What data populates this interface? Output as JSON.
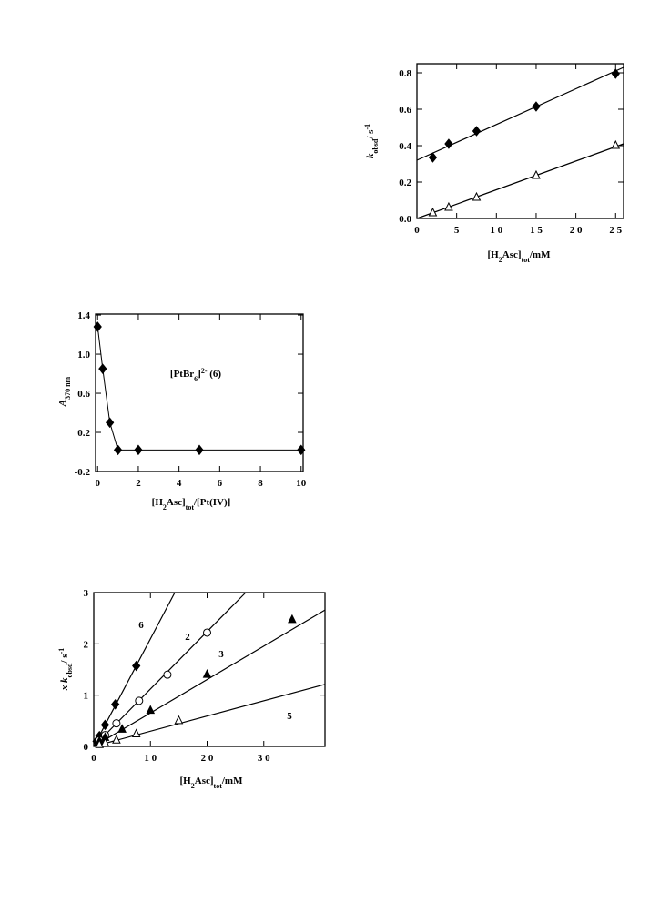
{
  "chart_data": [
    {
      "type": "scatter",
      "xlabel": [
        {
          "text": "[H"
        },
        {
          "text": "2",
          "sub": true
        },
        {
          "text": "Asc]"
        },
        {
          "text": "tot",
          "sub": true
        },
        {
          "text": "/mM"
        }
      ],
      "ylabel": [
        {
          "text": "k",
          "italic": true
        },
        {
          "text": "obsd",
          "sub": true
        },
        {
          "text": "/ s"
        },
        {
          "text": "-1",
          "sup": true
        }
      ],
      "xlim": [
        0,
        26
      ],
      "ylim": [
        0,
        0.85
      ],
      "xticks": [
        0,
        5,
        {
          "value": 10,
          "label": "1 0"
        },
        {
          "value": 15,
          "label": "1 5"
        },
        {
          "value": 20,
          "label": "2 0"
        },
        {
          "value": 25,
          "label": "2 5"
        }
      ],
      "yticks": [
        {
          "value": 0,
          "label": "0.0"
        },
        0.2,
        0.4,
        0.6,
        0.8
      ],
      "series": [
        {
          "marker": "diamond",
          "color": "#000000",
          "x": [
            2,
            4,
            7.5,
            15,
            25
          ],
          "values": [
            0.335,
            0.41,
            0.48,
            0.615,
            0.795
          ],
          "fit": {
            "x": [
              0,
              26
            ],
            "y": [
              0.32,
              0.83
            ]
          }
        },
        {
          "marker": "triangle-open",
          "color": "#000000",
          "x": [
            2,
            4,
            7.5,
            15,
            25
          ],
          "values": [
            0.03,
            0.06,
            0.115,
            0.235,
            0.4
          ],
          "fit": {
            "x": [
              0,
              26
            ],
            "y": [
              0,
              0.41
            ]
          }
        }
      ]
    },
    {
      "type": "scatter",
      "xlabel": [
        {
          "text": "[H"
        },
        {
          "text": "2",
          "sub": true
        },
        {
          "text": "Asc]"
        },
        {
          "text": "tot",
          "sub": true
        },
        {
          "text": "/[Pt(IV)]"
        }
      ],
      "ylabel": [
        {
          "text": "A",
          "italic": true
        },
        {
          "text": "370 nm",
          "sub": true
        }
      ],
      "annotation": [
        {
          "text": "[PtBr"
        },
        {
          "text": "6",
          "sub": true
        },
        {
          "text": "]"
        },
        {
          "text": "2-",
          "sup": true
        },
        {
          "text": " (6)"
        }
      ],
      "xlim": [
        -0.1,
        10.1
      ],
      "ylim": [
        -0.2,
        1.41
      ],
      "xticks": [
        0,
        2,
        4,
        6,
        8,
        10
      ],
      "yticks": [
        -0.2,
        0.2,
        0.6,
        {
          "value": 1,
          "label": "1.0"
        },
        1.4
      ],
      "series": [
        {
          "marker": "diamond",
          "color": "#000000",
          "line": true,
          "x": [
            0,
            0.25,
            0.6,
            1,
            2,
            5,
            10
          ],
          "values": [
            1.28,
            0.85,
            0.3,
            0.02,
            0.02,
            0.02,
            0.02
          ]
        }
      ]
    },
    {
      "type": "scatter",
      "xlabel": [
        {
          "text": "[H"
        },
        {
          "text": "2",
          "sub": true
        },
        {
          "text": "Asc]"
        },
        {
          "text": "tot",
          "sub": true
        },
        {
          "text": "/mM"
        }
      ],
      "ylabel": [
        {
          "text": "x ",
          "italic": true
        },
        {
          "text": "k",
          "italic": true
        },
        {
          "text": "obsd",
          "sub": true
        },
        {
          "text": "/ s"
        },
        {
          "text": "-1",
          "sup": true
        }
      ],
      "xlim": [
        0,
        40.8
      ],
      "ylim": [
        0,
        3
      ],
      "xticks": [
        0,
        {
          "value": 10,
          "label": "1 0"
        },
        {
          "value": 20,
          "label": "2 0"
        },
        {
          "value": 30,
          "label": "3 0"
        }
      ],
      "yticks": [
        0,
        1,
        2,
        3
      ],
      "series": [
        {
          "name": "6",
          "marker": "diamond",
          "color": "#000000",
          "x": [
            0.5,
            1,
            2,
            3.8,
            7.5
          ],
          "values": [
            0.1,
            0.2,
            0.42,
            0.82,
            1.57
          ],
          "fit": {
            "x": [
              0,
              14.3
            ],
            "y": [
              0,
              3
            ]
          }
        },
        {
          "name": "2",
          "marker": "circle-open",
          "color": "#000000",
          "x": [
            1,
            2,
            4,
            8,
            13,
            20
          ],
          "values": [
            0.12,
            0.22,
            0.45,
            0.89,
            1.4,
            2.22
          ],
          "fit": {
            "x": [
              0,
              26.8
            ],
            "y": [
              0,
              3
            ]
          }
        },
        {
          "name": "3",
          "marker": "triangle",
          "color": "#000000",
          "x": [
            1,
            2,
            5,
            10,
            20,
            35
          ],
          "values": [
            0.1,
            0.17,
            0.33,
            0.7,
            1.4,
            2.47
          ],
          "fit": {
            "x": [
              0,
              40.8
            ],
            "y": [
              0,
              2.66
            ]
          }
        },
        {
          "name": "5",
          "marker": "triangle-open",
          "color": "#000000",
          "x": [
            1,
            2,
            4,
            7.5,
            15
          ],
          "values": [
            0.03,
            0.06,
            0.12,
            0.24,
            0.5
          ],
          "fit": {
            "x": [
              0,
              40.8
            ],
            "y": [
              0,
              1.21
            ]
          }
        }
      ]
    }
  ]
}
